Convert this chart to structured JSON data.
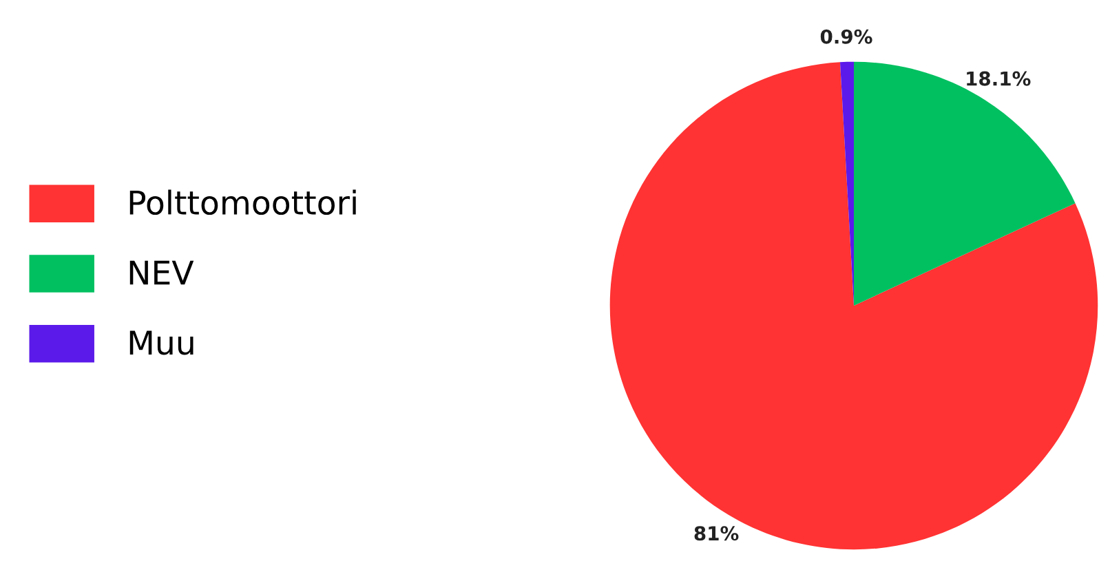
{
  "chart_data": {
    "type": "pie",
    "categories": [
      "Polttomoottori",
      "NEV",
      "Muu"
    ],
    "values": [
      81,
      18.1,
      0.9
    ],
    "colors": [
      "#ff3333",
      "#00c060",
      "#5b1aea"
    ],
    "value_labels": [
      "81%",
      "18.1%",
      "0.9%"
    ],
    "legend": "left"
  }
}
